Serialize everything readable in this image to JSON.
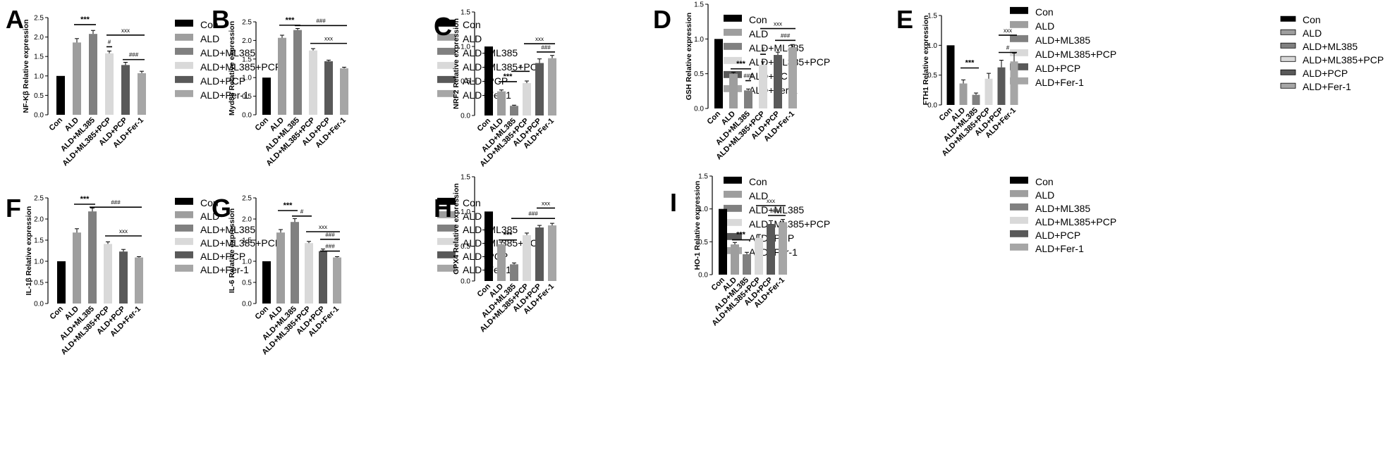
{
  "categories": [
    "Con",
    "ALD",
    "ALD+ML385",
    "ALD+ML385+PCP",
    "ALD+PCP",
    "ALD+Fer-1"
  ],
  "legend_colors": [
    "#000000",
    "#9e9e9e",
    "#808080",
    "#d9d9d9",
    "#595959",
    "#a6a6a6"
  ],
  "chart_data": [
    {
      "type": "bar",
      "letter": "A",
      "ylabel": "NF-Kβ  Relative expression",
      "ylim": [
        0,
        2.5
      ],
      "ticks": [
        0,
        0.5,
        1.0,
        1.5,
        2.0,
        2.5
      ],
      "values": [
        1.0,
        1.86,
        2.08,
        1.58,
        1.28,
        1.07
      ],
      "errors": [
        0,
        0.1,
        0.09,
        0.06,
        0.07,
        0.05
      ],
      "annotations": [
        {
          "text": "***",
          "from": 1,
          "to": 2,
          "y": 2.32,
          "size": "big"
        },
        {
          "text": "#",
          "from": 3,
          "to": 3,
          "y": 1.75,
          "size": "small"
        },
        {
          "text": "xxx",
          "from": 3,
          "to": 5,
          "y": 2.05,
          "size": "small"
        },
        {
          "text": "###",
          "from": 4,
          "to": 5,
          "y": 1.42,
          "size": "small"
        }
      ]
    },
    {
      "type": "bar",
      "letter": "B",
      "ylabel": "Myd88  Relative expression",
      "ylim": [
        0,
        2.5
      ],
      "ticks": [
        0,
        0.5,
        1.0,
        1.5,
        2.0,
        2.5
      ],
      "values": [
        1.0,
        2.07,
        2.28,
        1.73,
        1.44,
        1.25
      ],
      "errors": [
        0,
        0.07,
        0.04,
        0.05,
        0.03,
        0.03
      ],
      "annotations": [
        {
          "text": "***",
          "from": 1,
          "to": 2,
          "y": 2.41,
          "size": "big"
        },
        {
          "text": "###",
          "from": 2,
          "to": 5,
          "y": 2.4,
          "size": "small"
        },
        {
          "text": "xxx",
          "from": 3,
          "to": 5,
          "y": 1.92,
          "size": "small"
        }
      ]
    },
    {
      "type": "bar",
      "letter": "C",
      "ylabel": "NRF2 Relative expression",
      "ylim": [
        0,
        1.5
      ],
      "ticks": [
        0,
        0.5,
        1.0,
        1.5
      ],
      "values": [
        1.0,
        0.35,
        0.14,
        0.47,
        0.76,
        0.83
      ],
      "errors": [
        0,
        0.02,
        0.01,
        0.03,
        0.06,
        0.04
      ],
      "annotations": [
        {
          "text": "***",
          "from": 1,
          "to": 2,
          "y": 0.49,
          "size": "big"
        },
        {
          "text": "#",
          "from": 2,
          "to": 3,
          "y": 0.64,
          "size": "small"
        },
        {
          "text": "xxx",
          "from": 3,
          "to": 5,
          "y": 1.04,
          "size": "small"
        },
        {
          "text": "###",
          "from": 4,
          "to": 5,
          "y": 0.92,
          "size": "small"
        }
      ]
    },
    {
      "type": "bar",
      "letter": "D",
      "ylabel": "GSH  Relative expression",
      "ylim": [
        0,
        1.5
      ],
      "ticks": [
        0,
        0.5,
        1.0,
        1.5
      ],
      "values": [
        1.0,
        0.5,
        0.26,
        0.63,
        0.77,
        0.88
      ],
      "errors": [
        0,
        0.02,
        0.02,
        0.04,
        0.04,
        0.04
      ],
      "annotations": [
        {
          "text": "***",
          "from": 1,
          "to": 2,
          "y": 0.57,
          "size": "big"
        },
        {
          "text": "###",
          "from": 2,
          "to": 2,
          "y": 0.4,
          "size": "small"
        },
        {
          "text": "#",
          "from": 3,
          "to": 3,
          "y": 0.78,
          "size": "small"
        },
        {
          "text": "xxx",
          "from": 3,
          "to": 5,
          "y": 1.15,
          "size": "small"
        },
        {
          "text": "###",
          "from": 4,
          "to": 5,
          "y": 0.98,
          "size": "small"
        }
      ]
    },
    {
      "type": "bar",
      "letter": "E",
      "ylabel": "FTH1  Relative expression",
      "ylim": [
        0,
        1.5
      ],
      "ticks": [
        0,
        0.5,
        1.0,
        1.5
      ],
      "values": [
        1.0,
        0.36,
        0.17,
        0.44,
        0.63,
        0.73
      ],
      "errors": [
        0,
        0.06,
        0.03,
        0.09,
        0.12,
        0.14
      ],
      "annotations": [
        {
          "text": "***",
          "from": 1,
          "to": 2,
          "y": 0.62,
          "size": "big"
        },
        {
          "text": "xxx",
          "from": 4,
          "to": 5,
          "y": 1.17,
          "size": "small"
        },
        {
          "text": "#",
          "from": 4,
          "to": 5,
          "y": 0.88,
          "size": "small"
        }
      ]
    },
    {
      "type": "bar",
      "letter": "F",
      "ylabel": "IL-1β  Relative expression",
      "ylim": [
        0,
        2.5
      ],
      "ticks": [
        0,
        0.5,
        1.0,
        1.5,
        2.0,
        2.5
      ],
      "values": [
        1.0,
        1.68,
        2.18,
        1.41,
        1.23,
        1.09
      ],
      "errors": [
        0,
        0.09,
        0.08,
        0.05,
        0.05,
        0.02
      ],
      "annotations": [
        {
          "text": "***",
          "from": 1,
          "to": 2,
          "y": 2.35,
          "size": "big"
        },
        {
          "text": "###",
          "from": 2,
          "to": 5,
          "y": 2.28,
          "size": "small"
        },
        {
          "text": "xxx",
          "from": 3,
          "to": 5,
          "y": 1.6,
          "size": "small"
        }
      ]
    },
    {
      "type": "bar",
      "letter": "G",
      "ylabel": "IL-6  Relative expression",
      "ylim": [
        0,
        2.5
      ],
      "ticks": [
        0,
        0.5,
        1.0,
        1.5,
        2.0,
        2.5
      ],
      "values": [
        1.0,
        1.68,
        1.93,
        1.43,
        1.24,
        1.09
      ],
      "errors": [
        0,
        0.07,
        0.08,
        0.04,
        0.05,
        0.02
      ],
      "annotations": [
        {
          "text": "***",
          "from": 1,
          "to": 2,
          "y": 2.2,
          "size": "big"
        },
        {
          "text": "#",
          "from": 2,
          "to": 3,
          "y": 2.07,
          "size": "small"
        },
        {
          "text": "xxx",
          "from": 3,
          "to": 5,
          "y": 1.7,
          "size": "small"
        },
        {
          "text": "###",
          "from": 4,
          "to": 5,
          "y": 1.52,
          "size": "small"
        },
        {
          "text": "###",
          "from": 4,
          "to": 5,
          "y": 1.24,
          "size": "small"
        }
      ]
    },
    {
      "type": "bar",
      "letter": "H",
      "ylabel": "GPX4  Relative expression",
      "ylim": [
        0,
        1.5
      ],
      "ticks": [
        0,
        0.5,
        1.0,
        1.5
      ],
      "values": [
        1.0,
        0.53,
        0.24,
        0.66,
        0.77,
        0.8
      ],
      "errors": [
        0,
        0.03,
        0.02,
        0.03,
        0.03,
        0.03
      ],
      "annotations": [
        {
          "text": "***",
          "from": 1,
          "to": 2,
          "y": 0.59,
          "size": "big"
        },
        {
          "text": "xxx",
          "from": 4,
          "to": 5,
          "y": 1.05,
          "size": "small"
        },
        {
          "text": "###",
          "from": 2,
          "to": 5,
          "y": 0.9,
          "size": "small"
        }
      ]
    },
    {
      "type": "bar",
      "letter": "I",
      "ylabel": "HO-1 Relative expression",
      "ylim": [
        0,
        1.5
      ],
      "ticks": [
        0,
        0.5,
        1.0,
        1.5
      ],
      "values": [
        1.0,
        0.46,
        0.31,
        0.56,
        0.77,
        0.8
      ],
      "errors": [
        0,
        0.03,
        0.03,
        0.05,
        0.05,
        0.04
      ],
      "annotations": [
        {
          "text": "***",
          "from": 1,
          "to": 2,
          "y": 0.53,
          "size": "big"
        },
        {
          "text": "xxx",
          "from": 3,
          "to": 5,
          "y": 1.05,
          "size": "small"
        },
        {
          "text": "###",
          "from": 4,
          "to": 5,
          "y": 0.9,
          "size": "small"
        }
      ]
    }
  ]
}
